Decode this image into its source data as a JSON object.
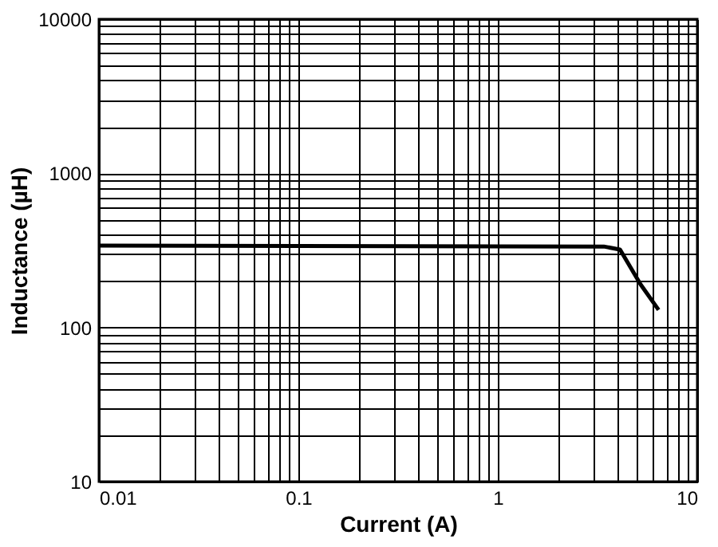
{
  "chart_data": {
    "type": "line",
    "xlabel": "Current (A)",
    "ylabel": "Inductance (µH)",
    "log": "xy",
    "grid": true,
    "xlim": [
      0.01,
      10
    ],
    "ylim": [
      10,
      10000
    ],
    "xticks": [
      0.01,
      {
        "value": 0.02,
        "label": null
      },
      {
        "value": 0.03,
        "label": null
      },
      {
        "value": 0.04,
        "label": null
      },
      {
        "value": 0.05,
        "label": null
      },
      {
        "value": 0.06,
        "label": null
      },
      {
        "value": 0.07,
        "label": null
      },
      {
        "value": 0.08,
        "label": null
      },
      {
        "value": 0.09,
        "label": null
      },
      0.1,
      {
        "value": 0.2,
        "label": null
      },
      {
        "value": 0.3,
        "label": null
      },
      {
        "value": 0.4,
        "label": null
      },
      {
        "value": 0.5,
        "label": null
      },
      {
        "value": 0.6,
        "label": null
      },
      {
        "value": 0.7,
        "label": null
      },
      {
        "value": 0.8,
        "label": null
      },
      {
        "value": 0.9,
        "label": null
      },
      1,
      {
        "value": 2,
        "label": null
      },
      {
        "value": 3,
        "label": null
      },
      {
        "value": 4,
        "label": null
      },
      {
        "value": 5,
        "label": null
      },
      {
        "value": 6,
        "label": null
      },
      {
        "value": 7,
        "label": null
      },
      {
        "value": 8,
        "label": null
      },
      {
        "value": 9,
        "label": null
      },
      10
    ],
    "yticks": [
      10,
      {
        "value": 20,
        "label": null
      },
      {
        "value": 30,
        "label": null
      },
      {
        "value": 40,
        "label": null
      },
      {
        "value": 50,
        "label": null
      },
      {
        "value": 60,
        "label": null
      },
      {
        "value": 70,
        "label": null
      },
      {
        "value": 80,
        "label": null
      },
      {
        "value": 90,
        "label": null
      },
      100,
      {
        "value": 200,
        "label": null
      },
      {
        "value": 300,
        "label": null
      },
      {
        "value": 400,
        "label": null
      },
      {
        "value": 500,
        "label": null
      },
      {
        "value": 600,
        "label": null
      },
      {
        "value": 700,
        "label": null
      },
      {
        "value": 800,
        "label": null
      },
      {
        "value": 900,
        "label": null
      },
      1000,
      {
        "value": 2000,
        "label": null
      },
      {
        "value": 3000,
        "label": null
      },
      {
        "value": 4000,
        "label": null
      },
      {
        "value": 5000,
        "label": null
      },
      {
        "value": 6000,
        "label": null
      },
      {
        "value": 7000,
        "label": null
      },
      {
        "value": 8000,
        "label": null
      },
      {
        "value": 9000,
        "label": null
      },
      10000
    ],
    "series": [
      {
        "color": "#000000",
        "x": [
          0.01,
          0.1,
          1,
          3.4,
          4.1,
          5.2,
          6.4
        ],
        "values": [
          340,
          338,
          336,
          335,
          320,
          190,
          130
        ]
      }
    ]
  }
}
